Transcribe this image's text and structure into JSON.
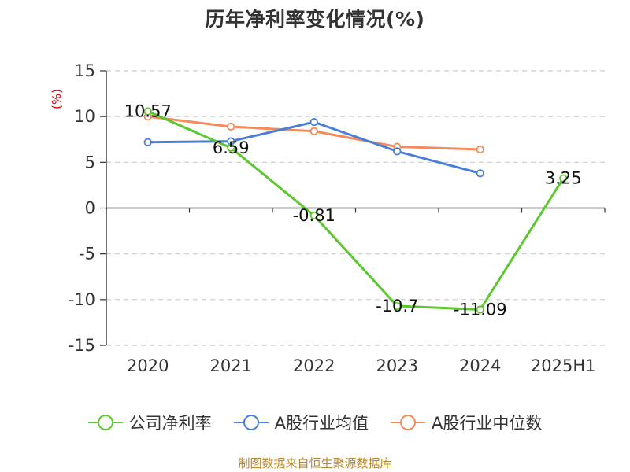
{
  "title": "历年净利率变化情况(%)",
  "source": "制图数据来自恒生聚源数据库",
  "chart_data": {
    "type": "line",
    "title": "历年净利率变化情况(%)",
    "ylabel": "(%)",
    "xlabel": "",
    "categories": [
      "2020",
      "2021",
      "2022",
      "2023",
      "2024",
      "2025H1"
    ],
    "ylim": [
      -15,
      15
    ],
    "yticks": [
      15,
      10,
      5,
      0,
      -5,
      -10,
      -15
    ],
    "grid": true,
    "legend_position": "bottom",
    "series": [
      {
        "name": "公司净利率",
        "color": "#5cc72e",
        "values": [
          10.57,
          6.59,
          -0.81,
          -10.7,
          -11.09,
          3.25
        ],
        "labels": [
          "10.57",
          "6.59",
          "-0.81",
          "-10.7",
          "-11.09",
          "3.25"
        ]
      },
      {
        "name": "A股行业均值",
        "color": "#4a7fd9",
        "values": [
          7.2,
          7.3,
          9.4,
          6.2,
          3.8,
          null
        ]
      },
      {
        "name": "A股行业中位数",
        "color": "#f58a5a",
        "values": [
          10.0,
          8.9,
          8.4,
          6.7,
          6.4,
          null
        ]
      }
    ]
  }
}
